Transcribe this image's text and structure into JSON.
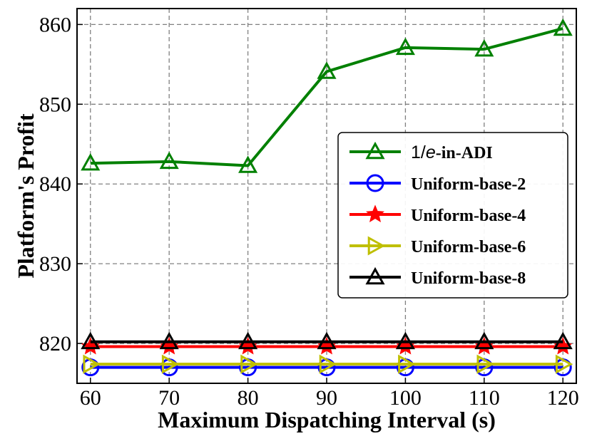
{
  "chart_data": {
    "type": "line",
    "xlabel": "Maximum Dispatching Interval (s)",
    "ylabel": "Platform's Profit",
    "x": [
      60,
      70,
      80,
      90,
      100,
      110,
      120
    ],
    "xlim": [
      58.3,
      121.7
    ],
    "ylim": [
      815,
      862
    ],
    "xticks": [
      "60",
      "70",
      "80",
      "90",
      "100",
      "110",
      "120"
    ],
    "yticks": [
      "820",
      "830",
      "840",
      "850",
      "860"
    ],
    "yticks_values": [
      820,
      830,
      840,
      850,
      860
    ],
    "grid": true,
    "legend_position": "center-right",
    "series": [
      {
        "name_prefix": "1/",
        "name_italic": "e",
        "name_suffix": "-in-ADI",
        "color": "#008000",
        "marker": "triangle-up",
        "values": [
          842.6,
          842.8,
          842.3,
          854.1,
          857.1,
          856.9,
          859.5
        ]
      },
      {
        "name": "Uniform-base-2",
        "color": "#0000ff",
        "marker": "circle",
        "values": [
          817.0,
          817.0,
          817.0,
          817.0,
          817.0,
          817.0,
          817.0
        ]
      },
      {
        "name": "Uniform-base-4",
        "color": "#ff0000",
        "marker": "star",
        "values": [
          819.6,
          819.6,
          819.6,
          819.6,
          819.6,
          819.6,
          819.6
        ]
      },
      {
        "name": "Uniform-base-6",
        "color": "#bfbf00",
        "marker": "triangle-right",
        "values": [
          817.4,
          817.4,
          817.4,
          817.4,
          817.4,
          817.4,
          817.4
        ]
      },
      {
        "name": "Uniform-base-8",
        "color": "#000000",
        "marker": "triangle-up",
        "values": [
          820.2,
          820.2,
          820.2,
          820.2,
          820.2,
          820.2,
          820.2
        ]
      }
    ]
  }
}
